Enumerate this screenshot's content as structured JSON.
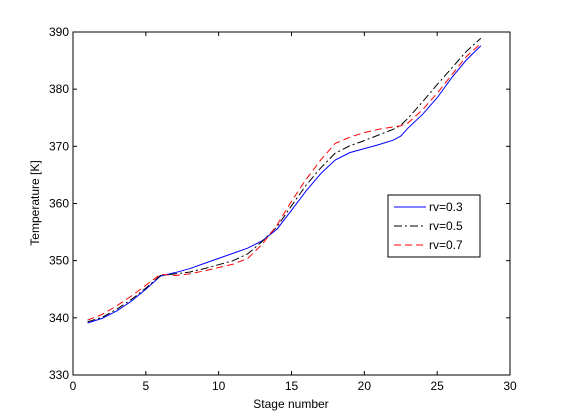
{
  "chart_data": {
    "type": "line",
    "title": "",
    "xlabel": "Stage number",
    "ylabel": "Temperature [K]",
    "xlim": [
      0,
      30
    ],
    "ylim": [
      330,
      390
    ],
    "xticks": [
      0,
      5,
      10,
      15,
      20,
      25,
      30
    ],
    "yticks": [
      330,
      340,
      350,
      360,
      370,
      380,
      390
    ],
    "grid": false,
    "legend_position": "right",
    "series": [
      {
        "name": "rv=0.3",
        "color": "#0000ff",
        "dash": "solid",
        "x": [
          1,
          2,
          3,
          4,
          5,
          6,
          7,
          8,
          9,
          10,
          11,
          12,
          13,
          14,
          15,
          16,
          17,
          18,
          19,
          20,
          21,
          22,
          22.5,
          23,
          24,
          25,
          26,
          27,
          28
        ],
        "y": [
          339.1,
          339.9,
          341.2,
          342.9,
          345.0,
          347.3,
          347.9,
          348.6,
          349.5,
          350.4,
          351.3,
          352.2,
          353.5,
          355.5,
          358.8,
          362.2,
          365.2,
          367.6,
          368.9,
          369.6,
          370.3,
          371.1,
          371.8,
          373.2,
          375.6,
          378.5,
          382.0,
          385.1,
          387.6
        ]
      },
      {
        "name": "rv=0.5",
        "color": "#000000",
        "dash": "dashdot",
        "x": [
          1,
          2,
          3,
          4,
          5,
          6,
          7,
          8,
          9,
          10,
          11,
          12,
          13,
          14,
          15,
          16,
          17,
          18,
          19,
          20,
          21,
          22,
          22.5,
          23,
          24,
          25,
          26,
          27,
          28
        ],
        "y": [
          339.3,
          340.1,
          341.5,
          343.2,
          345.2,
          347.4,
          347.7,
          348.0,
          348.6,
          349.3,
          350.0,
          351.2,
          353.4,
          355.9,
          359.6,
          363.2,
          366.2,
          368.8,
          370.1,
          371.0,
          372.0,
          373.0,
          373.7,
          374.9,
          377.8,
          380.8,
          383.7,
          386.6,
          388.9
        ]
      },
      {
        "name": "rv=0.7",
        "color": "#ff0000",
        "dash": "dashed",
        "x": [
          1,
          2,
          3,
          4,
          5,
          6,
          7,
          8,
          9,
          10,
          11,
          12,
          13,
          14,
          15,
          16,
          17,
          18,
          19,
          20,
          21,
          22,
          22.5,
          23,
          24,
          25,
          26,
          27,
          28
        ],
        "y": [
          339.6,
          340.6,
          342.1,
          343.8,
          345.7,
          347.6,
          347.4,
          347.7,
          348.2,
          348.8,
          349.4,
          350.4,
          352.9,
          356.2,
          360.4,
          364.2,
          367.6,
          370.5,
          371.6,
          372.4,
          373.0,
          373.4,
          373.6,
          374.1,
          376.4,
          379.3,
          382.5,
          385.7,
          388.0
        ]
      }
    ]
  }
}
